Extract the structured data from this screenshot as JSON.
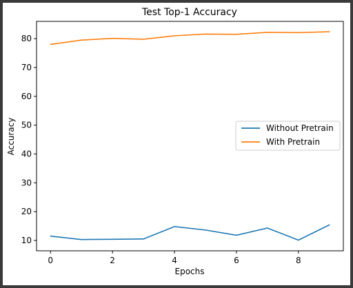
{
  "chart_data": {
    "type": "line",
    "title": "Test Top-1 Accuracy",
    "xlabel": "Epochs",
    "ylabel": "Accuracy",
    "xlim": [
      -0.45,
      9.45
    ],
    "ylim": [
      6.4,
      86.0
    ],
    "x_ticks": [
      0,
      2,
      4,
      6,
      8
    ],
    "y_ticks": [
      10,
      20,
      30,
      40,
      50,
      60,
      70,
      80
    ],
    "x": [
      0,
      1,
      2,
      3,
      4,
      5,
      6,
      7,
      8,
      9
    ],
    "series": [
      {
        "name": "Without Pretrain",
        "color": "#1f77b4",
        "values": [
          11.5,
          10.3,
          10.4,
          10.5,
          14.8,
          13.6,
          11.8,
          14.3,
          10.1,
          15.4
        ]
      },
      {
        "name": "With Pretrain",
        "color": "#ff7f0e",
        "values": [
          78.0,
          79.5,
          80.1,
          79.8,
          81.0,
          81.6,
          81.5,
          82.2,
          82.1,
          82.4
        ]
      }
    ],
    "legend_position": "center-right",
    "grid": false
  }
}
